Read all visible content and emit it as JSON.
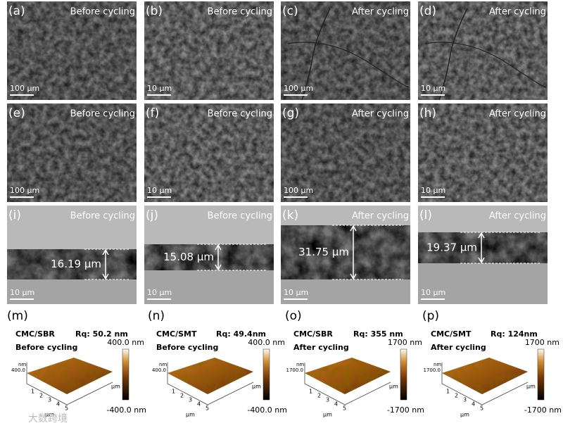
{
  "sem_rows": [
    {
      "panels": [
        {
          "label": "(a)",
          "state": "Before cycling",
          "scale": "100 μm"
        },
        {
          "label": "(b)",
          "state": "Before cycling",
          "scale": "10 μm"
        },
        {
          "label": "(c)",
          "state": "After cycling",
          "scale": "100 μm"
        },
        {
          "label": "(d)",
          "state": "After cycling",
          "scale": "10 μm"
        }
      ]
    },
    {
      "panels": [
        {
          "label": "(e)",
          "state": "Before cycling",
          "scale": "100 μm"
        },
        {
          "label": "(f)",
          "state": "Before cycling",
          "scale": "10 μm"
        },
        {
          "label": "(g)",
          "state": "After cycling",
          "scale": "100 μm"
        },
        {
          "label": "(h)",
          "state": "After cycling",
          "scale": "10 μm"
        }
      ]
    },
    {
      "panels": [
        {
          "label": "(i)",
          "state": "Before cycling",
          "scale": "10 μm",
          "thickness": "16.19 μm"
        },
        {
          "label": "(j)",
          "state": "Before cycling",
          "scale": "10 μm",
          "thickness": "15.08 μm"
        },
        {
          "label": "(k)",
          "state": "After cycling",
          "scale": "10 μm",
          "thickness": "31.75 μm"
        },
        {
          "label": "(l)",
          "state": "After cycling",
          "scale": "10 μm",
          "thickness": "19.37 μm"
        }
      ]
    }
  ],
  "afm": [
    {
      "label": "(m)",
      "sample": "CMC/SBR",
      "rq": "Rq: 50.2 nm",
      "state": "Before cycling",
      "z_max": "400.0 nm",
      "z_min": "-400.0 nm",
      "z_tick": "400.0",
      "z_unit": "nm",
      "x_unit": "μm",
      "y_unit": "μm",
      "x_ticks": [
        "1",
        "2",
        "3",
        "4",
        "5"
      ]
    },
    {
      "label": "(n)",
      "sample": "CMC/SMT",
      "rq": "Rq: 49.4nm",
      "state": "Before cycling",
      "z_max": "400.0 nm",
      "z_min": "-400.0 nm",
      "z_tick": "400.0",
      "z_unit": "nm",
      "x_unit": "μm",
      "y_unit": "μm",
      "x_ticks": [
        "1",
        "2",
        "3",
        "4",
        "5"
      ]
    },
    {
      "label": "(o)",
      "sample": "CMC/SBR",
      "rq": "Rq: 355 nm",
      "state": "After cycling",
      "z_max": "1700 nm",
      "z_min": "-1700 nm",
      "z_tick": "1700.0",
      "z_unit": "nm",
      "x_unit": "μm",
      "y_unit": "μm",
      "x_ticks": [
        "1",
        "2",
        "3",
        "4",
        "5"
      ]
    },
    {
      "label": "(p)",
      "sample": "CMC/SMT",
      "rq": "Rq: 124nm",
      "state": "After cycling",
      "z_max": "1700 nm",
      "z_min": "-1700 nm",
      "z_tick": "1700.0",
      "z_unit": "nm",
      "x_unit": "μm",
      "y_unit": "μm",
      "x_ticks": [
        "1",
        "2",
        "3",
        "4",
        "5"
      ]
    }
  ],
  "watermark": "大数跨境"
}
